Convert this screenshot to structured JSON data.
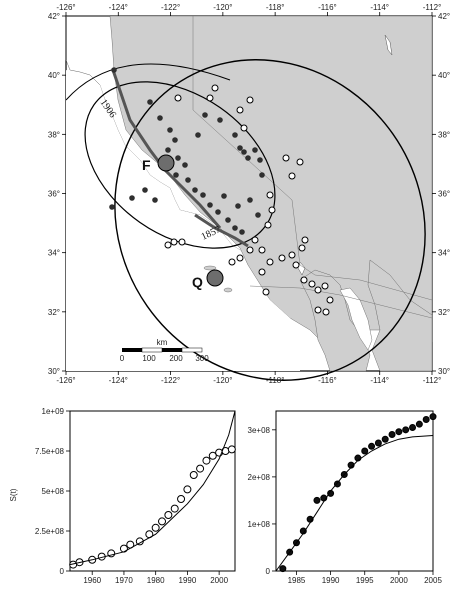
{
  "map": {
    "lon_ticks": [
      "-126°",
      "-124°",
      "-122°",
      "-120°",
      "-118°",
      "-116°",
      "-114°",
      "-112°"
    ],
    "lat_ticks": [
      "42°",
      "40°",
      "38°",
      "36°",
      "34°",
      "32°",
      "30°"
    ],
    "point_labels": {
      "f": "F",
      "q": "Q"
    },
    "fault_labels": {
      "y1906": "1906",
      "y1857": "1857"
    },
    "scalebar": {
      "unit": "km",
      "ticks": [
        "0",
        "100",
        "200",
        "300"
      ]
    },
    "colors": {
      "land": "#cfcfcf",
      "ocean": "#ffffff",
      "filled_point": "#2f2f2f",
      "large_point": "#6d6d6d"
    }
  },
  "chart_data": [
    {
      "type": "line",
      "ylabel": "S(t)",
      "xlabel": "",
      "x_ticks": [
        "1960",
        "1970",
        "1980",
        "1990",
        "2000"
      ],
      "y_ticks": [
        "1e+09",
        "7.5e+08",
        "5e+08",
        "2.5e+08",
        "0"
      ],
      "ylim": [
        0,
        1000000000
      ],
      "xlim": [
        1953,
        2005
      ],
      "series": [
        {
          "values": [
            [
              1954,
              40000000
            ],
            [
              1956,
              55000000
            ],
            [
              1960,
              70000000
            ],
            [
              1963,
              90000000
            ],
            [
              1966,
              110000000
            ],
            [
              1970,
              140000000
            ],
            [
              1972,
              165000000
            ],
            [
              1975,
              185000000
            ],
            [
              1978,
              230000000
            ],
            [
              1980,
              270000000
            ],
            [
              1982,
              310000000
            ],
            [
              1984,
              350000000
            ],
            [
              1986,
              390000000
            ],
            [
              1988,
              450000000
            ],
            [
              1990,
              510000000
            ],
            [
              1992,
              600000000
            ],
            [
              1994,
              640000000
            ],
            [
              1996,
              690000000
            ],
            [
              1998,
              720000000
            ],
            [
              2000,
              740000000
            ],
            [
              2002,
              750000000
            ],
            [
              2004,
              760000000
            ]
          ],
          "style": "open-circles"
        },
        {
          "values": [
            [
              1953,
              40000000
            ],
            [
              1960,
              70000000
            ],
            [
              1970,
              120000000
            ],
            [
              1980,
              230000000
            ],
            [
              1990,
              420000000
            ],
            [
              1995,
              540000000
            ],
            [
              2000,
              700000000
            ],
            [
              2003,
              850000000
            ],
            [
              2005,
              1000000000
            ]
          ],
          "style": "line"
        }
      ]
    },
    {
      "type": "line",
      "xlabel": "",
      "x_ticks": [
        "1985",
        "1990",
        "1995",
        "2000",
        "2005"
      ],
      "y_ticks": [
        "3e+08",
        "2e+08",
        "1e+08",
        "0"
      ],
      "ylim": [
        0,
        340000000
      ],
      "xlim": [
        1982,
        2005
      ],
      "series": [
        {
          "values": [
            [
              1983,
              5000000
            ],
            [
              1984,
              40000000
            ],
            [
              1985,
              60000000
            ],
            [
              1986,
              85000000
            ],
            [
              1987,
              110000000
            ],
            [
              1988,
              150000000
            ],
            [
              1989,
              155000000
            ],
            [
              1990,
              165000000
            ],
            [
              1991,
              185000000
            ],
            [
              1992,
              205000000
            ],
            [
              1993,
              225000000
            ],
            [
              1994,
              240000000
            ],
            [
              1995,
              255000000
            ],
            [
              1996,
              265000000
            ],
            [
              1997,
              272000000
            ],
            [
              1998,
              280000000
            ],
            [
              1999,
              290000000
            ],
            [
              2000,
              296000000
            ],
            [
              2001,
              300000000
            ],
            [
              2002,
              305000000
            ],
            [
              2003,
              312000000
            ],
            [
              2004,
              322000000
            ],
            [
              2005,
              328000000
            ]
          ],
          "style": "filled-dots"
        },
        {
          "values": [
            [
              1982,
              0
            ],
            [
              1984,
              40000000
            ],
            [
              1986,
              80000000
            ],
            [
              1988,
              125000000
            ],
            [
              1990,
              170000000
            ],
            [
              1992,
              205000000
            ],
            [
              1994,
              235000000
            ],
            [
              1996,
              255000000
            ],
            [
              1998,
              270000000
            ],
            [
              2000,
              280000000
            ],
            [
              2002,
              285000000
            ],
            [
              2005,
              288000000
            ]
          ],
          "style": "line"
        }
      ]
    }
  ]
}
